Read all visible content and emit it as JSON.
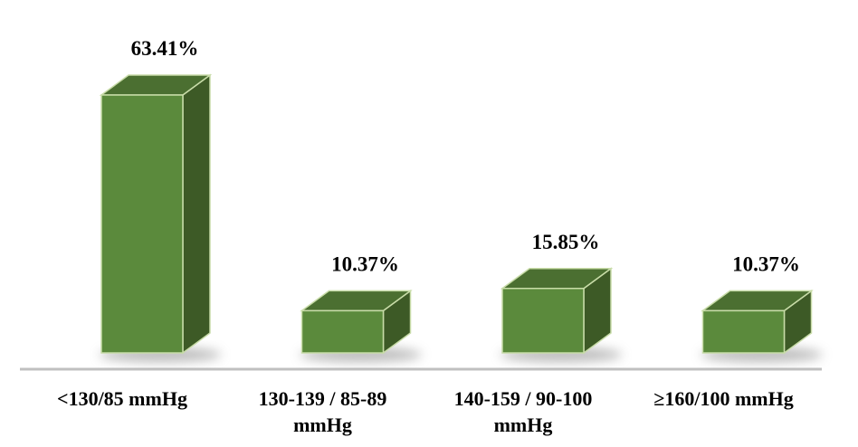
{
  "chart_data": {
    "type": "bar3d",
    "categories": [
      "<130/85 mmHg",
      "130-139 / 85-89 mmHg",
      "140-159 / 90-100 mmHg",
      "≥160/100 mmHg"
    ],
    "values": [
      63.41,
      10.37,
      15.85,
      10.37
    ],
    "value_labels": [
      "63.41%",
      "10.37%",
      "15.85%",
      "10.37%"
    ],
    "color": "#5b8a3c"
  }
}
